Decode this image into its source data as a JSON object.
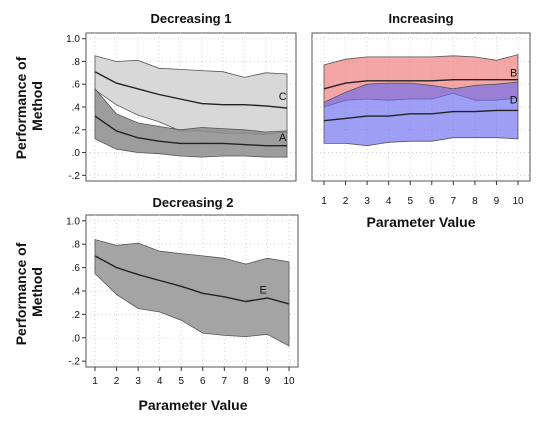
{
  "chart_data": [
    {
      "type": "area",
      "title": "Decreasing 1",
      "ylabel": "Performance of Method",
      "xlabel": "",
      "ylim": [
        -0.25,
        1.05
      ],
      "yticks": [
        "1.0",
        ".8",
        ".6",
        ".4",
        ".2",
        ".0",
        "-.2"
      ],
      "ytick_values": [
        1.0,
        0.8,
        0.6,
        0.4,
        0.2,
        0.0,
        -0.2
      ],
      "x": [
        1,
        2,
        3,
        4,
        5,
        6,
        7,
        8,
        9,
        10
      ],
      "grid": true,
      "bands": [
        {
          "label": "C",
          "label_x": 9.8,
          "label_y": 0.46,
          "color": "#d4d4d4",
          "opacity": 0.9,
          "upper": [
            0.85,
            0.8,
            0.81,
            0.74,
            0.73,
            0.72,
            0.71,
            0.66,
            0.7,
            0.69
          ],
          "center": [
            0.71,
            0.61,
            0.56,
            0.51,
            0.47,
            0.43,
            0.42,
            0.42,
            0.41,
            0.39
          ],
          "lower": [
            0.55,
            0.42,
            0.33,
            0.27,
            0.19,
            0.19,
            0.17,
            0.17,
            0.16,
            0.18
          ]
        },
        {
          "label": "A",
          "label_x": 9.8,
          "label_y": 0.1,
          "color": "#8c8c8c",
          "opacity": 0.85,
          "upper": [
            0.56,
            0.34,
            0.26,
            0.23,
            0.2,
            0.22,
            0.21,
            0.2,
            0.18,
            0.19
          ],
          "center": [
            0.32,
            0.19,
            0.13,
            0.1,
            0.08,
            0.08,
            0.08,
            0.07,
            0.06,
            0.06
          ],
          "lower": [
            0.12,
            0.03,
            0.0,
            -0.01,
            -0.03,
            -0.04,
            -0.03,
            -0.03,
            -0.04,
            -0.04
          ]
        }
      ]
    },
    {
      "type": "area",
      "title": "Increasing",
      "ylabel": "",
      "xlabel": "Parameter Value",
      "ylim": [
        -0.25,
        1.05
      ],
      "x": [
        1,
        2,
        3,
        4,
        5,
        6,
        7,
        8,
        9,
        10
      ],
      "xticks": [
        "1",
        "2",
        "3",
        "4",
        "5",
        "6",
        "7",
        "8",
        "9",
        "10"
      ],
      "grid": true,
      "bands": [
        {
          "label": "B",
          "label_x": 9.8,
          "label_y": 0.67,
          "color": "#f08080",
          "opacity": 0.7,
          "upper": [
            0.77,
            0.82,
            0.84,
            0.84,
            0.84,
            0.84,
            0.85,
            0.84,
            0.81,
            0.86
          ],
          "center": [
            0.56,
            0.61,
            0.63,
            0.63,
            0.63,
            0.63,
            0.64,
            0.64,
            0.64,
            0.64
          ],
          "lower": [
            0.4,
            0.46,
            0.47,
            0.46,
            0.47,
            0.47,
            0.52,
            0.46,
            0.46,
            0.48
          ]
        },
        {
          "label": "D",
          "label_x": 9.8,
          "label_y": 0.43,
          "color": "#6a6aee",
          "opacity": 0.65,
          "upper": [
            0.44,
            0.53,
            0.6,
            0.61,
            0.61,
            0.59,
            0.56,
            0.59,
            0.6,
            0.62
          ],
          "center": [
            0.28,
            0.3,
            0.32,
            0.32,
            0.34,
            0.34,
            0.36,
            0.36,
            0.37,
            0.37
          ],
          "lower": [
            0.08,
            0.08,
            0.06,
            0.09,
            0.1,
            0.1,
            0.13,
            0.13,
            0.13,
            0.12
          ]
        }
      ]
    },
    {
      "type": "area",
      "title": "Decreasing 2",
      "ylabel": "Performance of Method",
      "xlabel": "Parameter Value",
      "ylim": [
        -0.25,
        1.05
      ],
      "yticks": [
        "1.0",
        ".8",
        ".6",
        ".4",
        ".2",
        ".0",
        "-.2"
      ],
      "ytick_values": [
        1.0,
        0.8,
        0.6,
        0.4,
        0.2,
        0.0,
        -0.2
      ],
      "x": [
        1,
        2,
        3,
        4,
        5,
        6,
        7,
        8,
        9,
        10
      ],
      "xticks": [
        "1",
        "2",
        "3",
        "4",
        "5",
        "6",
        "7",
        "8",
        "9",
        "10"
      ],
      "grid": true,
      "bands": [
        {
          "label": "E",
          "label_x": 8.8,
          "label_y": 0.38,
          "color": "#9a9a9a",
          "opacity": 0.9,
          "upper": [
            0.84,
            0.79,
            0.81,
            0.74,
            0.72,
            0.7,
            0.68,
            0.63,
            0.68,
            0.65
          ],
          "center": [
            0.7,
            0.6,
            0.54,
            0.49,
            0.44,
            0.38,
            0.35,
            0.31,
            0.34,
            0.29
          ],
          "lower": [
            0.55,
            0.37,
            0.25,
            0.22,
            0.15,
            0.04,
            0.02,
            0.01,
            0.03,
            -0.07
          ]
        }
      ]
    }
  ]
}
